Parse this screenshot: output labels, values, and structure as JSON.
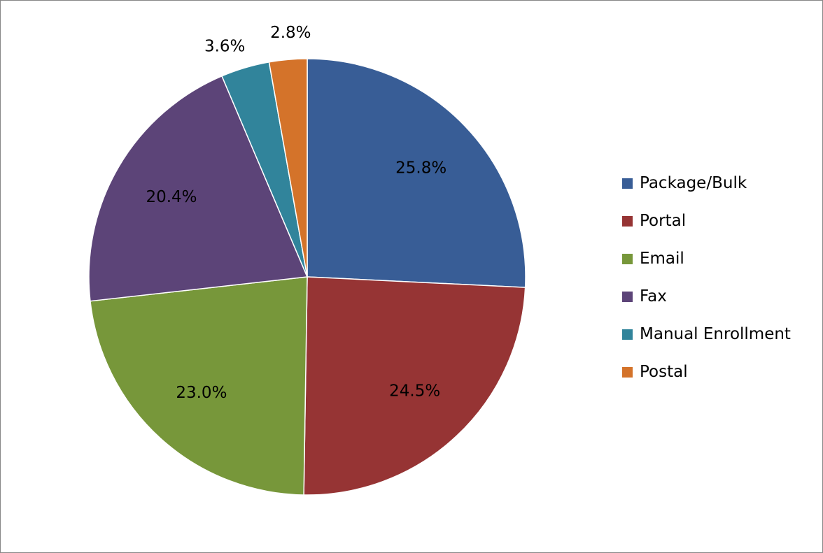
{
  "chart_data": {
    "type": "pie",
    "title": "",
    "legend_position": "right",
    "slices": [
      {
        "name": "Package/Bulk",
        "value": 25.8,
        "label": "25.8%",
        "color": "#385D96"
      },
      {
        "name": "Portal",
        "value": 24.5,
        "label": "24.5%",
        "color": "#963434"
      },
      {
        "name": "Email",
        "value": 23.0,
        "label": "23.0%",
        "color": "#77973A"
      },
      {
        "name": "Fax",
        "value": 20.4,
        "label": "20.4%",
        "color": "#5C4478"
      },
      {
        "name": "Manual Enrollment",
        "value": 3.6,
        "label": "3.6%",
        "color": "#31849B"
      },
      {
        "name": "Postal",
        "value": 2.8,
        "label": "2.8%",
        "color": "#D4732A"
      }
    ]
  }
}
